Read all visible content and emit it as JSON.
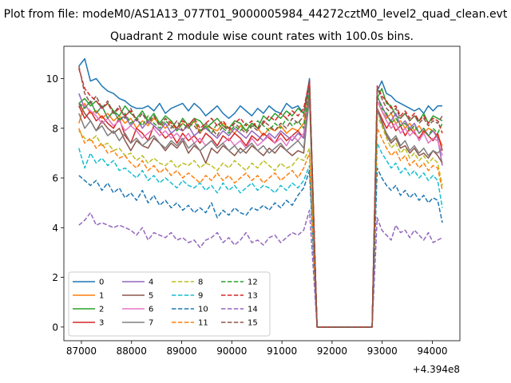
{
  "suptitle": "Plot from file: modeM0/AS1A13_077T01_9000005984_44272cztM0_level2_quad_clean.evt",
  "chart_data": {
    "type": "line",
    "title": "Quadrant 2 module wise count rates with 100.0s bins.",
    "xlabel": "",
    "ylabel": "",
    "x_offset_label": "+4.394e8",
    "xlim": [
      86650,
      94550
    ],
    "ylim": [
      -0.55,
      11.3
    ],
    "xticks": [
      87000,
      88000,
      89000,
      90000,
      91000,
      92000,
      93000,
      94000
    ],
    "yticks": [
      0,
      2,
      4,
      6,
      8,
      10
    ],
    "grid": false,
    "legend": {
      "position": "lower-left",
      "columns": 4
    },
    "gap": {
      "start": 91700,
      "end": 92800
    },
    "series": [
      {
        "name": "0",
        "color": "#1f77b4",
        "dash": "solid",
        "seg1": [
          10.5,
          10.8,
          9.9,
          10.0,
          9.7,
          9.5,
          9.4,
          9.2,
          9.1,
          8.9,
          8.8,
          8.8,
          8.9,
          8.7,
          9.0,
          8.6,
          8.8,
          8.9,
          9.0,
          8.7,
          9.0,
          8.8,
          8.5,
          8.7,
          8.9,
          8.6,
          8.4,
          8.6,
          8.9,
          8.7,
          8.5,
          8.8,
          8.6,
          8.9,
          8.7,
          8.6,
          9.0,
          8.8,
          8.9,
          8.6,
          10.0
        ],
        "seg2": [
          9.5,
          9.9,
          9.4,
          9.3,
          9.1,
          9.0,
          8.9,
          8.8,
          8.7,
          8.8,
          8.6,
          8.9,
          8.7,
          8.9,
          8.9
        ]
      },
      {
        "name": "1",
        "color": "#ff7f0e",
        "dash": "solid",
        "seg1": [
          8.2,
          9.0,
          8.6,
          8.7,
          8.4,
          8.6,
          8.3,
          8.5,
          8.2,
          8.4,
          8.0,
          8.3,
          8.1,
          8.4,
          8.2,
          8.0,
          8.3,
          7.9,
          8.2,
          8.0,
          8.3,
          7.8,
          8.1,
          8.0,
          7.9,
          8.2,
          8.0,
          7.8,
          8.1,
          7.9,
          8.2,
          8.0,
          7.7,
          8.0,
          7.9,
          8.1,
          7.8,
          8.0,
          7.9,
          8.2,
          9.6
        ],
        "seg2": [
          9.1,
          8.7,
          8.4,
          8.6,
          8.2,
          8.3,
          8.0,
          8.2,
          7.9,
          8.1,
          7.8,
          8.0,
          7.9,
          7.7,
          7.3
        ]
      },
      {
        "name": "2",
        "color": "#2ca02c",
        "dash": "solid",
        "seg1": [
          9.0,
          9.2,
          8.9,
          9.1,
          8.8,
          9.0,
          8.7,
          8.5,
          8.9,
          8.6,
          8.4,
          8.7,
          8.3,
          8.6,
          8.2,
          8.5,
          8.3,
          8.0,
          8.4,
          8.1,
          8.4,
          8.3,
          8.0,
          8.2,
          8.4,
          8.1,
          8.0,
          8.3,
          8.2,
          7.9,
          8.2,
          8.0,
          8.5,
          8.3,
          8.6,
          8.4,
          8.7,
          8.5,
          8.8,
          8.6,
          9.8
        ],
        "seg2": [
          9.2,
          9.6,
          9.0,
          8.9,
          8.5,
          8.4,
          8.6,
          8.3,
          8.5,
          8.3,
          8.6,
          8.2,
          8.5,
          8.4,
          8.3
        ]
      },
      {
        "name": "3",
        "color": "#d62728",
        "dash": "solid",
        "seg1": [
          8.9,
          8.4,
          8.7,
          8.3,
          8.5,
          8.2,
          8.0,
          8.4,
          7.7,
          7.4,
          8.0,
          7.8,
          7.5,
          8.1,
          7.9,
          7.6,
          7.8,
          7.4,
          7.8,
          7.5,
          7.7,
          7.4,
          7.8,
          7.6,
          7.3,
          7.7,
          7.5,
          7.8,
          7.6,
          7.3,
          7.7,
          7.5,
          7.8,
          7.6,
          7.4,
          7.8,
          7.5,
          7.7,
          7.9,
          7.6,
          9.9
        ],
        "seg2": [
          8.8,
          8.4,
          8.0,
          8.3,
          7.9,
          8.1,
          7.7,
          8.0,
          7.8,
          7.6,
          7.9,
          7.7,
          7.5,
          7.8,
          7.1
        ]
      },
      {
        "name": "4",
        "color": "#9467bd",
        "dash": "solid",
        "seg1": [
          9.4,
          8.8,
          9.1,
          8.6,
          8.9,
          8.4,
          8.7,
          8.3,
          8.5,
          8.1,
          8.4,
          8.0,
          8.3,
          8.1,
          7.9,
          8.2,
          7.8,
          8.0,
          7.9,
          8.1,
          7.7,
          7.9,
          8.0,
          7.8,
          7.6,
          7.9,
          7.7,
          8.0,
          7.8,
          7.6,
          7.9,
          7.7,
          7.5,
          7.8,
          7.6,
          7.9,
          7.7,
          7.5,
          7.8,
          7.6,
          9.6
        ],
        "seg2": [
          9.3,
          8.9,
          8.5,
          8.3,
          8.6,
          8.1,
          8.3,
          8.0,
          8.2,
          7.8,
          8.0,
          7.7,
          7.9,
          7.6,
          6.5
        ]
      },
      {
        "name": "5",
        "color": "#8c564b",
        "dash": "solid",
        "seg1": [
          9.0,
          8.6,
          8.3,
          7.9,
          8.3,
          8.0,
          7.8,
          8.0,
          7.5,
          7.1,
          7.5,
          7.3,
          7.2,
          7.6,
          7.4,
          7.1,
          7.4,
          7.2,
          7.5,
          7.0,
          7.3,
          7.1,
          6.6,
          7.2,
          7.0,
          7.3,
          7.1,
          6.9,
          7.2,
          7.0,
          7.3,
          7.1,
          6.9,
          7.2,
          7.0,
          7.3,
          7.1,
          6.9,
          7.1,
          7.0,
          9.4
        ],
        "seg2": [
          8.7,
          8.3,
          7.7,
          7.4,
          7.6,
          7.2,
          7.3,
          7.0,
          7.2,
          6.9,
          7.0,
          6.8,
          7.1,
          6.9,
          6.6
        ]
      },
      {
        "name": "6",
        "color": "#e377c2",
        "dash": "solid",
        "seg1": [
          9.0,
          8.9,
          8.7,
          8.5,
          8.2,
          8.4,
          8.1,
          8.3,
          7.9,
          8.1,
          7.9,
          7.6,
          7.8,
          8.0,
          7.7,
          7.9,
          7.6,
          7.8,
          7.5,
          7.8,
          7.4,
          7.6,
          7.3,
          7.5,
          7.2,
          7.4,
          7.6,
          7.3,
          7.5,
          7.2,
          7.6,
          7.3,
          7.5,
          7.7,
          7.4,
          7.6,
          7.3,
          7.7,
          7.5,
          7.8,
          9.7
        ],
        "seg2": [
          9.1,
          8.7,
          8.3,
          8.0,
          8.2,
          7.8,
          8.0,
          7.7,
          7.9,
          7.5,
          7.8,
          7.4,
          7.6,
          7.5,
          6.9
        ]
      },
      {
        "name": "7",
        "color": "#7f7f7f",
        "dash": "solid",
        "seg1": [
          8.6,
          8.0,
          8.3,
          7.9,
          8.1,
          7.7,
          7.9,
          7.5,
          7.8,
          7.4,
          7.6,
          7.3,
          7.5,
          7.7,
          7.4,
          7.2,
          7.5,
          7.3,
          7.6,
          7.2,
          7.4,
          7.1,
          7.3,
          7.5,
          7.2,
          7.4,
          7.1,
          7.3,
          7.0,
          7.2,
          7.4,
          7.1,
          7.3,
          7.0,
          7.2,
          7.4,
          7.1,
          7.3,
          7.5,
          7.2,
          9.2
        ],
        "seg2": [
          8.8,
          8.2,
          7.8,
          7.5,
          7.7,
          7.3,
          7.5,
          7.1,
          7.3,
          7.0,
          7.2,
          6.9,
          7.1,
          7.0,
          7.2
        ]
      },
      {
        "name": "8",
        "color": "#bcbd22",
        "dash": "dashed",
        "seg1": [
          7.9,
          7.6,
          7.5,
          7.7,
          7.3,
          7.4,
          7.1,
          7.2,
          6.9,
          7.0,
          6.7,
          6.9,
          6.6,
          6.8,
          6.6,
          6.5,
          6.7,
          6.4,
          6.6,
          6.5,
          6.7,
          6.4,
          6.6,
          6.5,
          6.3,
          6.6,
          6.4,
          6.7,
          6.5,
          6.3,
          6.6,
          6.4,
          6.7,
          6.5,
          6.3,
          6.6,
          6.4,
          6.5,
          6.8,
          6.7,
          7.2
        ],
        "seg2": [
          8.5,
          8.1,
          7.6,
          7.2,
          7.4,
          7.0,
          7.2,
          6.8,
          7.0,
          6.7,
          6.9,
          6.6,
          6.8,
          6.6,
          5.7
        ]
      },
      {
        "name": "9",
        "color": "#17becf",
        "dash": "dashed",
        "seg1": [
          7.2,
          6.4,
          7.0,
          6.6,
          6.8,
          6.5,
          6.7,
          6.3,
          6.4,
          6.2,
          6.0,
          6.3,
          5.9,
          6.1,
          5.8,
          6.0,
          5.8,
          5.6,
          5.9,
          5.7,
          5.6,
          5.8,
          5.5,
          5.7,
          5.4,
          5.8,
          5.5,
          5.7,
          5.4,
          5.6,
          5.8,
          5.5,
          5.7,
          5.6,
          5.4,
          5.7,
          5.5,
          5.8,
          5.6,
          5.9,
          6.5
        ],
        "seg2": [
          7.4,
          7.0,
          6.7,
          6.4,
          6.6,
          6.2,
          6.4,
          6.1,
          6.3,
          6.0,
          6.2,
          5.9,
          6.1,
          5.9,
          4.8
        ]
      },
      {
        "name": "10",
        "color": "#1f77b4",
        "dash": "dashed",
        "seg1": [
          6.1,
          5.9,
          5.7,
          5.9,
          5.5,
          5.8,
          5.4,
          5.6,
          5.2,
          5.4,
          5.1,
          5.5,
          5.0,
          5.3,
          4.9,
          5.1,
          4.8,
          5.0,
          4.7,
          4.9,
          4.6,
          4.8,
          4.6,
          5.0,
          4.4,
          4.7,
          4.5,
          4.8,
          4.6,
          4.5,
          4.8,
          4.7,
          4.9,
          4.7,
          5.0,
          4.8,
          5.1,
          4.9,
          5.3,
          5.6,
          6.3
        ],
        "seg2": [
          6.4,
          6.0,
          5.7,
          5.5,
          5.7,
          5.3,
          5.5,
          5.2,
          5.4,
          5.1,
          5.3,
          5.0,
          5.2,
          5.1,
          4.2
        ]
      },
      {
        "name": "11",
        "color": "#ff7f0e",
        "dash": "dashed",
        "seg1": [
          8.0,
          7.4,
          7.6,
          7.2,
          7.4,
          7.0,
          7.1,
          6.8,
          6.9,
          6.6,
          6.4,
          6.7,
          6.3,
          6.5,
          6.2,
          6.4,
          6.1,
          6.3,
          6.0,
          6.2,
          6.0,
          5.8,
          6.1,
          5.9,
          6.2,
          5.9,
          6.1,
          5.8,
          6.0,
          6.2,
          5.9,
          6.1,
          5.8,
          6.0,
          6.2,
          5.9,
          6.1,
          6.3,
          6.0,
          6.4,
          7.0
        ],
        "seg2": [
          8.0,
          7.6,
          7.2,
          6.9,
          7.1,
          6.7,
          6.9,
          6.5,
          6.7,
          6.4,
          6.6,
          6.3,
          6.5,
          6.4,
          5.5
        ]
      },
      {
        "name": "12",
        "color": "#2ca02c",
        "dash": "dashed",
        "seg1": [
          9.0,
          8.8,
          9.1,
          8.6,
          8.9,
          8.4,
          8.7,
          8.3,
          8.6,
          8.2,
          8.4,
          8.1,
          8.5,
          8.2,
          8.0,
          8.3,
          8.1,
          7.9,
          8.2,
          8.0,
          8.3,
          7.9,
          8.1,
          7.8,
          8.2,
          8.0,
          7.8,
          8.1,
          7.9,
          8.2,
          8.0,
          8.3,
          8.1,
          7.9,
          8.2,
          8.0,
          8.4,
          8.1,
          8.3,
          8.0,
          9.6
        ],
        "seg2": [
          9.3,
          8.8,
          8.6,
          8.2,
          8.4,
          8.1,
          8.2,
          7.9,
          8.1,
          7.8,
          8.0,
          7.7,
          8.0,
          7.8,
          8.2
        ]
      },
      {
        "name": "13",
        "color": "#d62728",
        "dash": "dashed",
        "seg1": [
          10.4,
          9.6,
          9.3,
          9.1,
          8.8,
          9.0,
          8.6,
          8.8,
          8.5,
          8.7,
          8.3,
          8.6,
          8.2,
          8.5,
          8.1,
          8.4,
          8.2,
          8.0,
          8.3,
          8.1,
          8.4,
          8.0,
          8.2,
          8.4,
          8.1,
          8.3,
          8.0,
          8.2,
          8.4,
          8.1,
          8.3,
          8.0,
          8.2,
          8.5,
          8.3,
          8.6,
          8.4,
          8.7,
          8.5,
          8.8,
          9.9
        ],
        "seg2": [
          9.7,
          9.3,
          9.1,
          8.8,
          8.9,
          8.5,
          8.7,
          8.4,
          8.6,
          8.3,
          8.5,
          8.2,
          8.4,
          8.3,
          7.8
        ]
      },
      {
        "name": "14",
        "color": "#9467bd",
        "dash": "dashed",
        "seg1": [
          4.1,
          4.3,
          4.6,
          4.1,
          4.2,
          4.1,
          4.0,
          4.1,
          4.0,
          3.9,
          3.7,
          4.0,
          3.5,
          3.8,
          3.7,
          3.6,
          3.8,
          3.5,
          3.6,
          3.4,
          3.5,
          3.2,
          3.5,
          3.6,
          3.8,
          3.4,
          3.6,
          3.3,
          3.5,
          3.8,
          3.4,
          3.5,
          3.3,
          3.6,
          3.7,
          3.4,
          3.6,
          3.8,
          3.7,
          3.9,
          4.7
        ],
        "seg2": [
          4.4,
          3.9,
          3.7,
          3.5,
          4.1,
          3.8,
          3.9,
          3.6,
          3.9,
          3.7,
          3.5,
          3.8,
          3.4,
          3.5,
          3.6
        ]
      },
      {
        "name": "15",
        "color": "#8c564b",
        "dash": "dashed",
        "seg1": [
          10.5,
          9.4,
          9.0,
          9.3,
          8.8,
          9.1,
          8.6,
          8.9,
          8.4,
          8.8,
          8.3,
          8.6,
          8.2,
          8.5,
          8.1,
          8.4,
          8.0,
          8.3,
          7.9,
          8.2,
          8.1,
          7.8,
          8.2,
          8.0,
          7.7,
          8.1,
          7.9,
          8.2,
          8.0,
          7.8,
          8.1,
          7.9,
          8.3,
          8.1,
          7.9,
          8.2,
          8.0,
          8.4,
          8.2,
          8.5,
          9.8
        ],
        "seg2": [
          9.6,
          9.2,
          8.8,
          8.6,
          8.8,
          8.4,
          8.6,
          8.3,
          8.5,
          8.2,
          8.4,
          8.1,
          8.3,
          8.2,
          8.5
        ]
      }
    ]
  }
}
